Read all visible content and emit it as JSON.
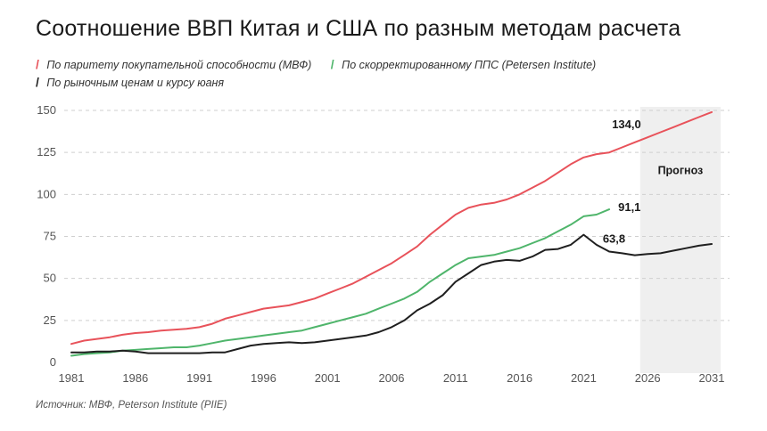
{
  "title": "Соотношение ВВП Китая и США по разным методам расчета",
  "legend": [
    {
      "label": "По паритету покупательной способности (МВФ)",
      "color": "#e8525a",
      "icon": "slash-mark"
    },
    {
      "label": "По скорректированному ППС (Petersen Institute)",
      "color": "#4fb56b",
      "icon": "slash-mark"
    },
    {
      "label": "По рыночным ценам и курсу юаня",
      "color": "#1f1f1f",
      "icon": "slash-mark"
    }
  ],
  "source": "Источник: МВФ, Peterson Institute (PIIE)",
  "chart_data": {
    "type": "line",
    "title": "Соотношение ВВП Китая и США по разным методам расчета",
    "xlabel": "",
    "ylabel": "",
    "xlim": [
      1981,
      2031
    ],
    "ylim": [
      0,
      150
    ],
    "x_ticks": [
      "1981",
      "1986",
      "1991",
      "1996",
      "2001",
      "2006",
      "2011",
      "2016",
      "2021",
      "2026",
      "2031"
    ],
    "y_ticks": [
      "0",
      "25",
      "50",
      "75",
      "100",
      "125",
      "150"
    ],
    "grid": "horizontal dashed",
    "forecast": {
      "start": 2025,
      "end": 2031,
      "label": "Прогноз"
    },
    "series": [
      {
        "name": "По паритету покупательной способности (МВФ)",
        "color": "#e8525a",
        "end_label": "134,0",
        "points": [
          [
            1981,
            11
          ],
          [
            1982,
            13
          ],
          [
            1983,
            14
          ],
          [
            1984,
            15
          ],
          [
            1985,
            16.5
          ],
          [
            1986,
            17.5
          ],
          [
            1987,
            18
          ],
          [
            1988,
            19
          ],
          [
            1989,
            19.5
          ],
          [
            1990,
            20
          ],
          [
            1991,
            21
          ],
          [
            1992,
            23
          ],
          [
            1993,
            26
          ],
          [
            1994,
            28
          ],
          [
            1995,
            30
          ],
          [
            1996,
            32
          ],
          [
            1997,
            33
          ],
          [
            1998,
            34
          ],
          [
            1999,
            36
          ],
          [
            2000,
            38
          ],
          [
            2001,
            41
          ],
          [
            2002,
            44
          ],
          [
            2003,
            47
          ],
          [
            2004,
            51
          ],
          [
            2005,
            55
          ],
          [
            2006,
            59
          ],
          [
            2007,
            64
          ],
          [
            2008,
            69
          ],
          [
            2009,
            76
          ],
          [
            2010,
            82
          ],
          [
            2011,
            88
          ],
          [
            2012,
            92
          ],
          [
            2013,
            94
          ],
          [
            2014,
            95
          ],
          [
            2015,
            97
          ],
          [
            2016,
            100
          ],
          [
            2017,
            104
          ],
          [
            2018,
            108
          ],
          [
            2019,
            113
          ],
          [
            2020,
            118
          ],
          [
            2021,
            122
          ],
          [
            2022,
            124
          ],
          [
            2023,
            125
          ],
          [
            2024,
            128
          ],
          [
            2025,
            131
          ],
          [
            2026,
            134
          ],
          [
            2027,
            137
          ],
          [
            2028,
            140
          ],
          [
            2029,
            143
          ],
          [
            2030,
            146
          ],
          [
            2031,
            149
          ]
        ]
      },
      {
        "name": "По скорректированному ППС (Petersen Institute)",
        "color": "#4fb56b",
        "end_label": "91,1",
        "points": [
          [
            1981,
            4
          ],
          [
            1982,
            5
          ],
          [
            1983,
            5.5
          ],
          [
            1984,
            6
          ],
          [
            1985,
            7
          ],
          [
            1986,
            7.5
          ],
          [
            1987,
            8
          ],
          [
            1988,
            8.5
          ],
          [
            1989,
            9
          ],
          [
            1990,
            9
          ],
          [
            1991,
            10
          ],
          [
            1992,
            11.5
          ],
          [
            1993,
            13
          ],
          [
            1994,
            14
          ],
          [
            1995,
            15
          ],
          [
            1996,
            16
          ],
          [
            1997,
            17
          ],
          [
            1998,
            18
          ],
          [
            1999,
            19
          ],
          [
            2000,
            21
          ],
          [
            2001,
            23
          ],
          [
            2002,
            25
          ],
          [
            2003,
            27
          ],
          [
            2004,
            29
          ],
          [
            2005,
            32
          ],
          [
            2006,
            35
          ],
          [
            2007,
            38
          ],
          [
            2008,
            42
          ],
          [
            2009,
            48
          ],
          [
            2010,
            53
          ],
          [
            2011,
            58
          ],
          [
            2012,
            62
          ],
          [
            2013,
            63
          ],
          [
            2014,
            64
          ],
          [
            2015,
            66
          ],
          [
            2016,
            68
          ],
          [
            2017,
            71
          ],
          [
            2018,
            74
          ],
          [
            2019,
            78
          ],
          [
            2020,
            82
          ],
          [
            2021,
            87
          ],
          [
            2022,
            88
          ],
          [
            2023,
            91.1
          ]
        ]
      },
      {
        "name": "По рыночным ценам и курсу юаня",
        "color": "#1f1f1f",
        "end_label": "63,8",
        "points": [
          [
            1981,
            6
          ],
          [
            1982,
            6
          ],
          [
            1983,
            6.5
          ],
          [
            1984,
            6.5
          ],
          [
            1985,
            7
          ],
          [
            1986,
            6.5
          ],
          [
            1987,
            5.5
          ],
          [
            1988,
            5.5
          ],
          [
            1989,
            5.5
          ],
          [
            1990,
            5.5
          ],
          [
            1991,
            5.5
          ],
          [
            1992,
            6
          ],
          [
            1993,
            6
          ],
          [
            1994,
            8
          ],
          [
            1995,
            10
          ],
          [
            1996,
            11
          ],
          [
            1997,
            11.5
          ],
          [
            1998,
            12
          ],
          [
            1999,
            11.5
          ],
          [
            2000,
            12
          ],
          [
            2001,
            13
          ],
          [
            2002,
            14
          ],
          [
            2003,
            15
          ],
          [
            2004,
            16
          ],
          [
            2005,
            18
          ],
          [
            2006,
            21
          ],
          [
            2007,
            25
          ],
          [
            2008,
            31
          ],
          [
            2009,
            35
          ],
          [
            2010,
            40
          ],
          [
            2011,
            48
          ],
          [
            2012,
            53
          ],
          [
            2013,
            58
          ],
          [
            2014,
            60
          ],
          [
            2015,
            61
          ],
          [
            2016,
            60.5
          ],
          [
            2017,
            63
          ],
          [
            2018,
            67
          ],
          [
            2019,
            67.5
          ],
          [
            2020,
            70
          ],
          [
            2021,
            76
          ],
          [
            2022,
            70
          ],
          [
            2023,
            66
          ],
          [
            2024,
            65
          ],
          [
            2025,
            63.8
          ],
          [
            2026,
            64.5
          ],
          [
            2027,
            65
          ],
          [
            2028,
            66.5
          ],
          [
            2029,
            68
          ],
          [
            2030,
            69.5
          ],
          [
            2031,
            70.5
          ]
        ]
      }
    ]
  }
}
